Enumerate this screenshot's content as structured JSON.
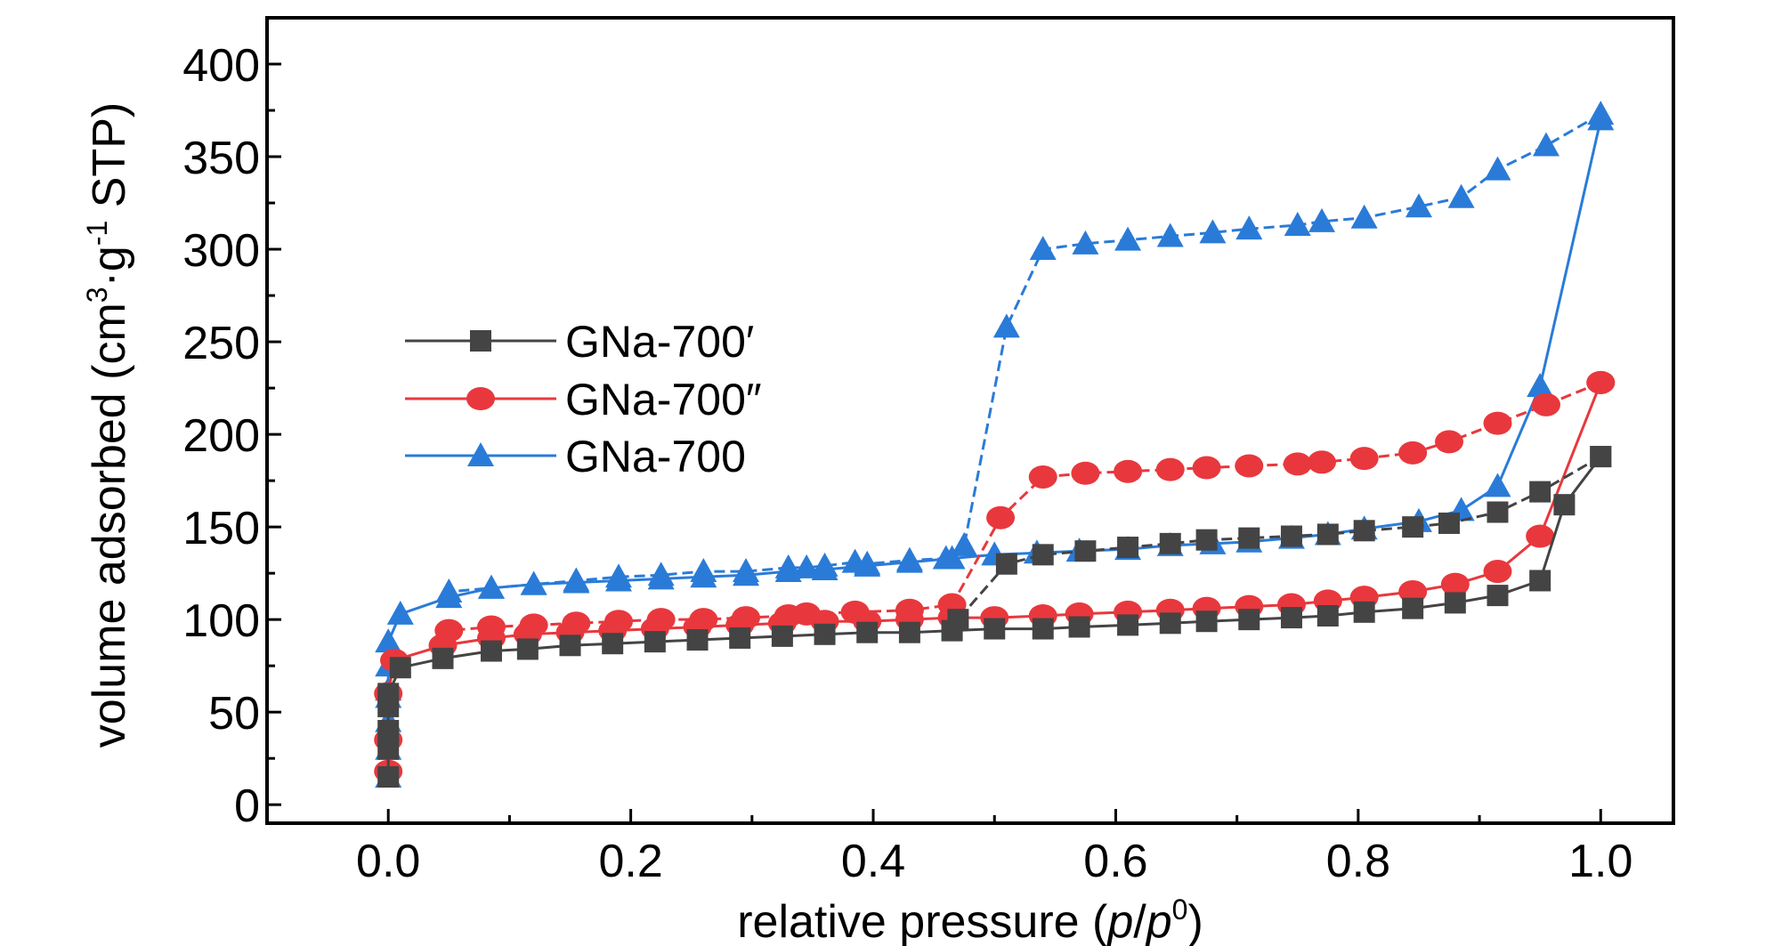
{
  "chart_data": {
    "type": "line",
    "xlabel": {
      "prefix": "relative pressure (",
      "p": "p",
      "slash": "/",
      "p0": "p",
      "sup": "0",
      "suffix": ")"
    },
    "ylabel": {
      "prefix": "volume adsorbed (cm",
      "sup3": "3",
      "mid": "·g",
      "supm1": "-1",
      "suffix": " STP)"
    },
    "xlim": [
      -0.1,
      1.06
    ],
    "ylim": [
      -10,
      425
    ],
    "xticks": [
      0.0,
      0.2,
      0.4,
      0.6,
      0.8,
      1.0
    ],
    "xtick_labels": [
      "0.0",
      "0.2",
      "0.4",
      "0.6",
      "0.8",
      "1.0"
    ],
    "yticks": [
      0,
      50,
      100,
      150,
      200,
      250,
      300,
      350,
      400
    ],
    "ytick_labels": [
      "0",
      "50",
      "100",
      "150",
      "200",
      "250",
      "300",
      "350",
      "400"
    ],
    "grid": false,
    "legend_position": "left-center",
    "series": [
      {
        "name": "GNa-700′",
        "color": "#444444",
        "marker": "square",
        "adsorption": {
          "x": [
            0.0,
            0.0,
            0.0,
            0.0,
            0.0,
            0.01,
            0.045,
            0.085,
            0.115,
            0.15,
            0.185,
            0.22,
            0.255,
            0.29,
            0.325,
            0.36,
            0.395,
            0.43,
            0.465,
            0.5,
            0.54,
            0.57,
            0.61,
            0.645,
            0.675,
            0.71,
            0.745,
            0.775,
            0.805,
            0.845,
            0.88,
            0.915,
            0.95,
            0.97,
            1.0
          ],
          "y": [
            15,
            30,
            40,
            53,
            60,
            74,
            79,
            83,
            84,
            86,
            87,
            88,
            89,
            90,
            91,
            92,
            93,
            93,
            94,
            95,
            95,
            96,
            97,
            98,
            99,
            100,
            101,
            102,
            104,
            106,
            109,
            113,
            121,
            162,
            188
          ]
        },
        "desorption": {
          "x": [
            1.0,
            0.95,
            0.915,
            0.875,
            0.845,
            0.805,
            0.775,
            0.745,
            0.71,
            0.675,
            0.645,
            0.61,
            0.575,
            0.54,
            0.51,
            0.47
          ],
          "y": [
            188,
            169,
            158,
            152,
            150,
            148,
            146,
            145,
            144,
            143,
            141,
            139,
            137,
            135,
            130,
            100
          ]
        }
      },
      {
        "name": "GNa-700″",
        "color": "#e8383d",
        "marker": "circle",
        "adsorption": {
          "x": [
            0.0,
            0.0,
            0.0,
            0.005,
            0.045,
            0.085,
            0.115,
            0.15,
            0.185,
            0.22,
            0.255,
            0.29,
            0.325,
            0.36,
            0.395,
            0.43,
            0.465,
            0.5,
            0.54,
            0.57,
            0.61,
            0.645,
            0.675,
            0.71,
            0.745,
            0.775,
            0.805,
            0.845,
            0.88,
            0.915,
            0.95,
            1.0
          ],
          "y": [
            18,
            35,
            60,
            78,
            86,
            90,
            92,
            93,
            94,
            95,
            96,
            97,
            98,
            99,
            99,
            100,
            101,
            101,
            102,
            103,
            104,
            105,
            106,
            107,
            108,
            110,
            112,
            115,
            119,
            126,
            145,
            228
          ]
        },
        "desorption": {
          "x": [
            1.0,
            0.955,
            0.915,
            0.875,
            0.845,
            0.805,
            0.77,
            0.75,
            0.71,
            0.675,
            0.645,
            0.61,
            0.575,
            0.54,
            0.505,
            0.465,
            0.43,
            0.385,
            0.345,
            0.33,
            0.295,
            0.26,
            0.225,
            0.19,
            0.155,
            0.12,
            0.085,
            0.05
          ],
          "y": [
            228,
            216,
            206,
            196,
            190,
            187,
            185,
            184,
            183,
            182,
            181,
            180,
            179,
            177,
            155,
            108,
            105,
            104,
            103,
            102,
            101,
            100,
            100,
            99,
            98,
            97,
            96,
            94
          ]
        }
      },
      {
        "name": "GNa-700",
        "color": "#2a7bd8",
        "marker": "triangle",
        "adsorption": {
          "x": [
            0.0,
            0.0,
            0.0,
            0.0,
            0.0,
            0.0,
            0.0,
            0.01,
            0.05,
            0.085,
            0.12,
            0.155,
            0.19,
            0.225,
            0.26,
            0.295,
            0.33,
            0.36,
            0.395,
            0.43,
            0.465,
            0.5,
            0.535,
            0.57,
            0.61,
            0.645,
            0.68,
            0.71,
            0.745,
            0.775,
            0.805,
            0.85,
            0.885,
            0.915,
            0.95,
            1.0
          ],
          "y": [
            15,
            30,
            45,
            58,
            62,
            75,
            88,
            103,
            112,
            117,
            119,
            120,
            121,
            122,
            123,
            124,
            126,
            127,
            129,
            131,
            133,
            135,
            136,
            137,
            138,
            140,
            141,
            142,
            144,
            146,
            149,
            153,
            159,
            172,
            226,
            370
          ]
        },
        "desorption": {
          "x": [
            1.0,
            0.955,
            0.915,
            0.885,
            0.85,
            0.805,
            0.77,
            0.75,
            0.71,
            0.68,
            0.645,
            0.61,
            0.575,
            0.54,
            0.51,
            0.475,
            0.46,
            0.43,
            0.395,
            0.385,
            0.36,
            0.345,
            0.33,
            0.295,
            0.26,
            0.225,
            0.19,
            0.155,
            0.12,
            0.085,
            0.05
          ],
          "y": [
            373,
            356,
            343,
            328,
            323,
            317,
            315,
            313,
            311,
            309,
            307,
            305,
            303,
            300,
            258,
            140,
            133,
            132,
            130,
            131,
            129,
            128,
            128,
            126,
            126,
            124,
            123,
            121,
            119,
            117,
            115
          ]
        }
      }
    ]
  }
}
